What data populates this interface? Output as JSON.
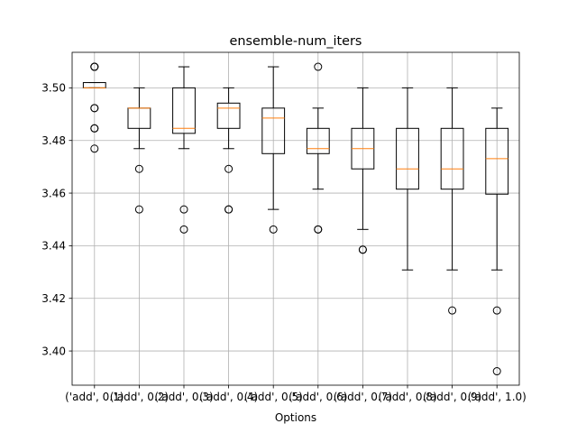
{
  "chart_data": {
    "type": "boxplot",
    "title": "ensemble-num_iters",
    "xlabel": "Options",
    "ylabel": "",
    "ylim": [
      3.387,
      3.5135
    ],
    "yticks": [
      3.4,
      3.42,
      3.44,
      3.46,
      3.48,
      3.5
    ],
    "ytick_labels": [
      "3.40",
      "3.42",
      "3.44",
      "3.46",
      "3.48",
      "3.50"
    ],
    "grid": true,
    "categories": [
      "('add', 0.1)",
      "('add', 0.2)",
      "('add', 0.3)",
      "('add', 0.4)",
      "('add', 0.5)",
      "('add', 0.6)",
      "('add', 0.7)",
      "('add', 0.8)",
      "('add', 0.9)",
      "('add', 1.0)"
    ],
    "boxes": [
      {
        "whislo": 3.5,
        "q1": 3.5,
        "med": 3.5,
        "q3": 3.502,
        "whishi": 3.502,
        "fliers": [
          3.508,
          3.508,
          3.508,
          3.4923,
          3.4923,
          3.4846,
          3.4846,
          3.4769
        ]
      },
      {
        "whislo": 3.4769,
        "q1": 3.4846,
        "med": 3.4923,
        "q3": 3.4923,
        "whishi": 3.5,
        "fliers": [
          3.4692,
          3.4538
        ]
      },
      {
        "whislo": 3.4769,
        "q1": 3.4827,
        "med": 3.4846,
        "q3": 3.5,
        "whishi": 3.508,
        "fliers": [
          3.4538,
          3.4462
        ]
      },
      {
        "whislo": 3.4769,
        "q1": 3.4846,
        "med": 3.4923,
        "q3": 3.4942,
        "whishi": 3.5,
        "fliers": [
          3.4692,
          3.4538,
          3.4538
        ]
      },
      {
        "whislo": 3.4538,
        "q1": 3.475,
        "med": 3.4885,
        "q3": 3.4923,
        "whishi": 3.508,
        "fliers": [
          3.4462
        ]
      },
      {
        "whislo": 3.4615,
        "q1": 3.475,
        "med": 3.4769,
        "q3": 3.4846,
        "whishi": 3.4923,
        "fliers": [
          3.508,
          3.4462,
          3.4462
        ]
      },
      {
        "whislo": 3.4462,
        "q1": 3.4692,
        "med": 3.4769,
        "q3": 3.4846,
        "whishi": 3.5,
        "fliers": [
          3.4385,
          3.4385
        ]
      },
      {
        "whislo": 3.4308,
        "q1": 3.4615,
        "med": 3.4692,
        "q3": 3.4846,
        "whishi": 3.5,
        "fliers": []
      },
      {
        "whislo": 3.4308,
        "q1": 3.4615,
        "med": 3.4692,
        "q3": 3.4846,
        "whishi": 3.5,
        "fliers": [
          3.4154
        ]
      },
      {
        "whislo": 3.4308,
        "q1": 3.4596,
        "med": 3.4731,
        "q3": 3.4846,
        "whishi": 3.4923,
        "fliers": [
          3.4154,
          3.3923
        ]
      }
    ]
  }
}
